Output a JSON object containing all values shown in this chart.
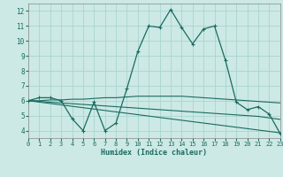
{
  "xlabel": "Humidex (Indice chaleur)",
  "bg_color": "#cce9e5",
  "grid_color": "#aad4cf",
  "line_color": "#1a6b60",
  "xlim": [
    0,
    23
  ],
  "ylim": [
    3.5,
    12.5
  ],
  "xticks": [
    0,
    1,
    2,
    3,
    4,
    5,
    6,
    7,
    8,
    9,
    10,
    11,
    12,
    13,
    14,
    15,
    16,
    17,
    18,
    19,
    20,
    21,
    22,
    23
  ],
  "yticks": [
    4,
    5,
    6,
    7,
    8,
    9,
    10,
    11,
    12
  ],
  "line1_x": [
    0,
    1,
    2,
    3,
    4,
    5,
    6,
    7,
    8,
    9,
    10,
    11,
    12,
    13,
    14,
    15,
    16,
    17,
    18,
    19,
    20,
    21,
    22,
    23
  ],
  "line1_y": [
    6.0,
    6.2,
    6.2,
    6.0,
    4.8,
    4.0,
    5.9,
    4.0,
    4.5,
    6.8,
    9.3,
    11.0,
    10.9,
    12.1,
    10.9,
    9.8,
    10.8,
    11.0,
    8.7,
    5.9,
    5.4,
    5.6,
    5.1,
    3.8
  ],
  "line2_x": [
    0,
    1,
    2,
    3,
    4,
    5,
    6,
    7,
    8,
    9,
    10,
    11,
    12,
    13,
    14,
    15,
    16,
    17,
    18,
    19,
    20,
    21,
    22,
    23
  ],
  "line2_y": [
    6.0,
    6.0,
    6.05,
    6.05,
    6.1,
    6.1,
    6.15,
    6.2,
    6.2,
    6.25,
    6.3,
    6.3,
    6.3,
    6.3,
    6.3,
    6.25,
    6.2,
    6.15,
    6.1,
    6.05,
    6.0,
    5.95,
    5.9,
    5.85
  ],
  "line3_x": [
    0,
    1,
    2,
    3,
    4,
    5,
    6,
    7,
    8,
    9,
    10,
    11,
    12,
    13,
    14,
    15,
    16,
    17,
    18,
    19,
    20,
    21,
    22,
    23
  ],
  "line3_y": [
    6.0,
    5.95,
    5.9,
    5.85,
    5.8,
    5.75,
    5.7,
    5.65,
    5.6,
    5.55,
    5.5,
    5.45,
    5.4,
    5.35,
    5.3,
    5.25,
    5.2,
    5.15,
    5.1,
    5.05,
    5.0,
    4.95,
    4.85,
    4.75
  ],
  "line4_x": [
    0,
    23
  ],
  "line4_y": [
    6.0,
    3.85
  ]
}
